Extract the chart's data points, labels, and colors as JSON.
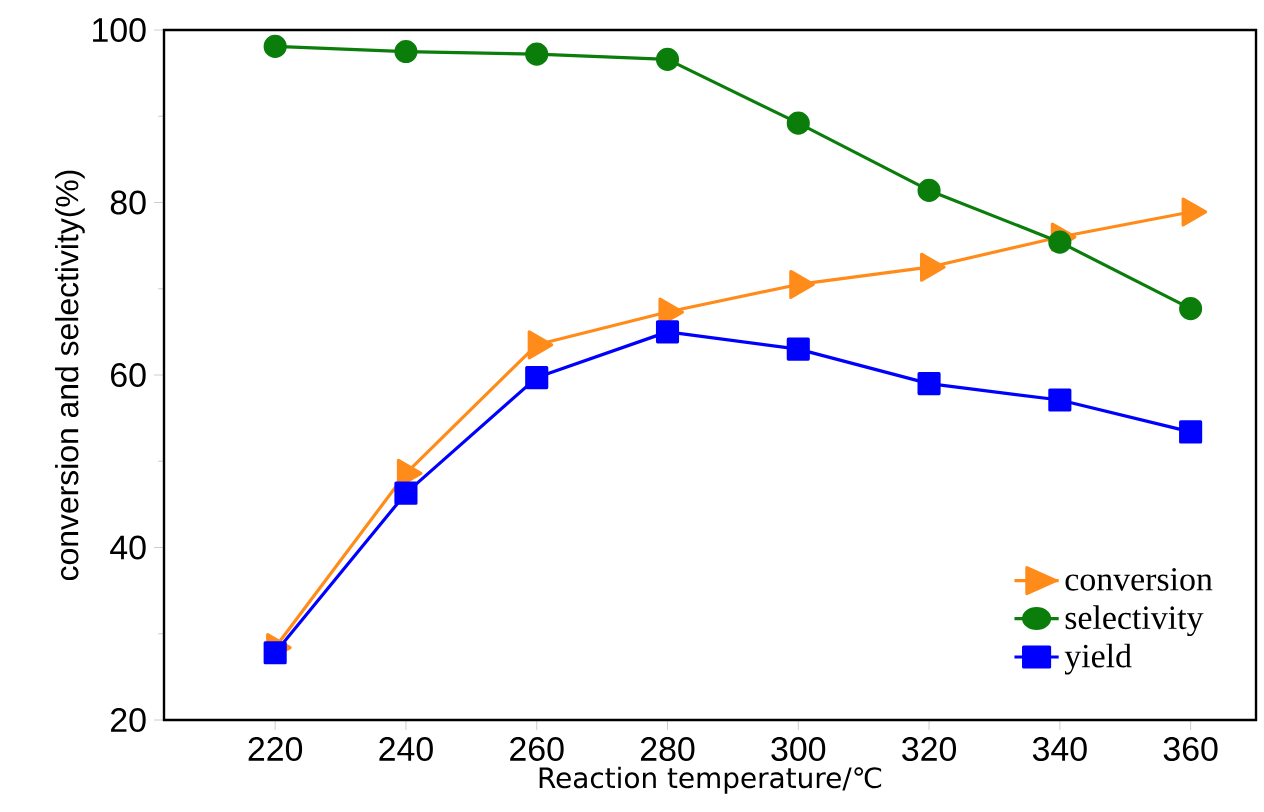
{
  "chart_data": {
    "type": "line",
    "xlabel": "Reaction temperature/℃",
    "ylabel": "conversion and selectivity(%)",
    "x": [
      220,
      240,
      260,
      280,
      300,
      320,
      340,
      360
    ],
    "xlim": [
      203,
      370
    ],
    "xticks": [
      220,
      240,
      260,
      280,
      300,
      320,
      340,
      360
    ],
    "ylim": [
      20,
      100
    ],
    "yticks": [
      20,
      40,
      60,
      80,
      100
    ],
    "legend": "bottom right",
    "grid": false,
    "line_style": "solid",
    "series": [
      {
        "name": "conversion",
        "color": "#ff8c1a",
        "marker": "triangle",
        "values": [
          28.4,
          48.6,
          63.5,
          67.3,
          70.5,
          72.5,
          76.0,
          78.9
        ]
      },
      {
        "name": "selectivity",
        "color": "#0a7d0a",
        "marker": "circle",
        "values": [
          98.1,
          97.5,
          97.2,
          96.6,
          89.2,
          81.4,
          75.4,
          67.7
        ]
      },
      {
        "name": "yield",
        "color": "#0000ff",
        "marker": "square",
        "values": [
          27.8,
          46.3,
          59.7,
          65.0,
          63.0,
          59.0,
          57.1,
          53.4
        ]
      }
    ]
  }
}
